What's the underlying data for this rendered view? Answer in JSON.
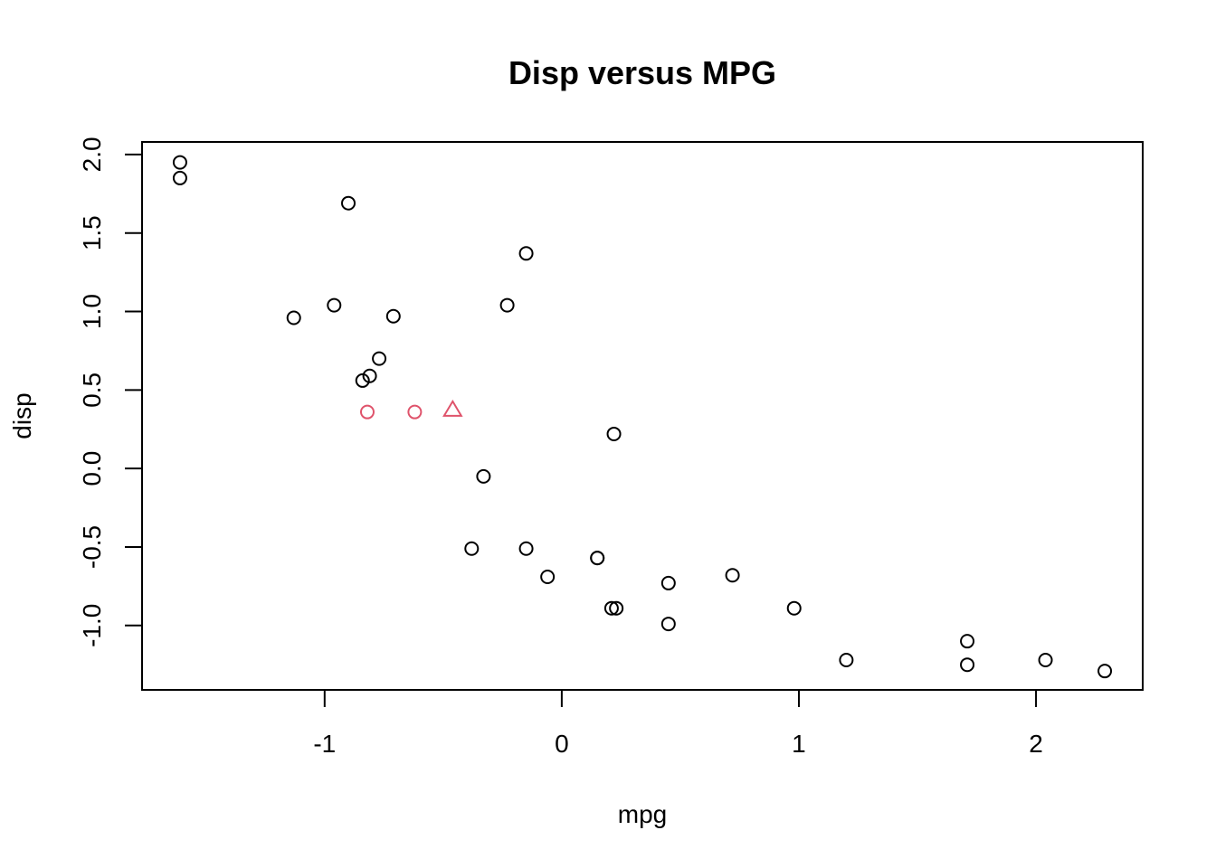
{
  "chart_data": {
    "type": "scatter",
    "title": "Disp versus MPG",
    "xlabel": "mpg",
    "ylabel": "disp",
    "xlim": [
      -1.77,
      2.45
    ],
    "ylim": [
      -1.41,
      2.08
    ],
    "x_ticks": [
      -1,
      0,
      1,
      2
    ],
    "x_tick_labels": [
      "-1",
      "0",
      "1",
      "2"
    ],
    "y_ticks": [
      -1.0,
      -0.5,
      0.0,
      0.5,
      1.0,
      1.5,
      2.0
    ],
    "y_tick_labels": [
      "-1.0",
      "-0.5",
      "0.0",
      "0.5",
      "1.0",
      "1.5",
      "2.0"
    ],
    "grid": false,
    "series": [
      {
        "marker": "circle",
        "color": "#000000",
        "points": [
          {
            "x": -1.61,
            "y": 1.95
          },
          {
            "x": -1.61,
            "y": 1.85
          },
          {
            "x": -0.9,
            "y": 1.69
          },
          {
            "x": -0.15,
            "y": 1.37
          },
          {
            "x": -1.13,
            "y": 0.96
          },
          {
            "x": -0.96,
            "y": 1.04
          },
          {
            "x": -0.71,
            "y": 0.97
          },
          {
            "x": -0.23,
            "y": 1.04
          },
          {
            "x": -0.77,
            "y": 0.7
          },
          {
            "x": -0.81,
            "y": 0.59
          },
          {
            "x": -0.84,
            "y": 0.56
          },
          {
            "x": 0.22,
            "y": 0.22
          },
          {
            "x": -0.33,
            "y": -0.05
          },
          {
            "x": -0.38,
            "y": -0.51
          },
          {
            "x": -0.15,
            "y": -0.51
          },
          {
            "x": 0.15,
            "y": -0.57
          },
          {
            "x": 0.15,
            "y": -0.57
          },
          {
            "x": -0.06,
            "y": -0.69
          },
          {
            "x": 0.45,
            "y": -0.73
          },
          {
            "x": 0.72,
            "y": -0.68
          },
          {
            "x": 0.21,
            "y": -0.89
          },
          {
            "x": 0.23,
            "y": -0.89
          },
          {
            "x": 0.98,
            "y": -0.89
          },
          {
            "x": 0.45,
            "y": -0.99
          },
          {
            "x": 1.2,
            "y": -1.22
          },
          {
            "x": 1.71,
            "y": -1.1
          },
          {
            "x": 1.71,
            "y": -1.25
          },
          {
            "x": 2.04,
            "y": -1.22
          },
          {
            "x": 2.29,
            "y": -1.29
          }
        ]
      },
      {
        "marker": "circle",
        "color": "#DF536B",
        "points": [
          {
            "x": -0.82,
            "y": 0.36
          },
          {
            "x": -0.62,
            "y": 0.36
          }
        ]
      },
      {
        "marker": "triangle",
        "color": "#DF536B",
        "points": [
          {
            "x": -0.46,
            "y": 0.37
          }
        ]
      }
    ]
  }
}
